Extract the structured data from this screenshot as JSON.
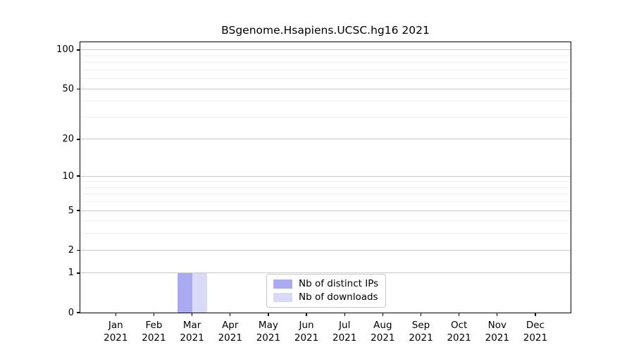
{
  "chart_data": {
    "type": "bar",
    "title": "BSgenome.Hsapiens.UCSC.hg16 2021",
    "yscale": "log1p",
    "ylim": [
      0,
      100
    ],
    "grid": "horizontal",
    "legend_position": "lower-center-inside",
    "year": "2021",
    "categories": [
      "Jan",
      "Feb",
      "Mar",
      "Apr",
      "May",
      "Jun",
      "Jul",
      "Aug",
      "Sep",
      "Oct",
      "Nov",
      "Dec"
    ],
    "yticks": [
      0,
      1,
      2,
      5,
      10,
      20,
      50,
      100
    ],
    "minor_gridlines": [
      3,
      4,
      6,
      7,
      8,
      9,
      30,
      40,
      60,
      70,
      80,
      90
    ],
    "series": [
      {
        "name": "Nb of distinct IPs",
        "color": "#aaaaf2",
        "values": [
          0,
          0,
          1,
          0,
          0,
          0,
          0,
          0,
          0,
          0,
          0,
          0
        ]
      },
      {
        "name": "Nb of downloads",
        "color": "#d9d9f8",
        "values": [
          0,
          0,
          1,
          0,
          0,
          0,
          0,
          0,
          0,
          0,
          0,
          0
        ]
      }
    ],
    "colors": {
      "major_gridline": "#c9c9c9",
      "minor_gridline": "#efefef",
      "axis": "#000000"
    }
  }
}
